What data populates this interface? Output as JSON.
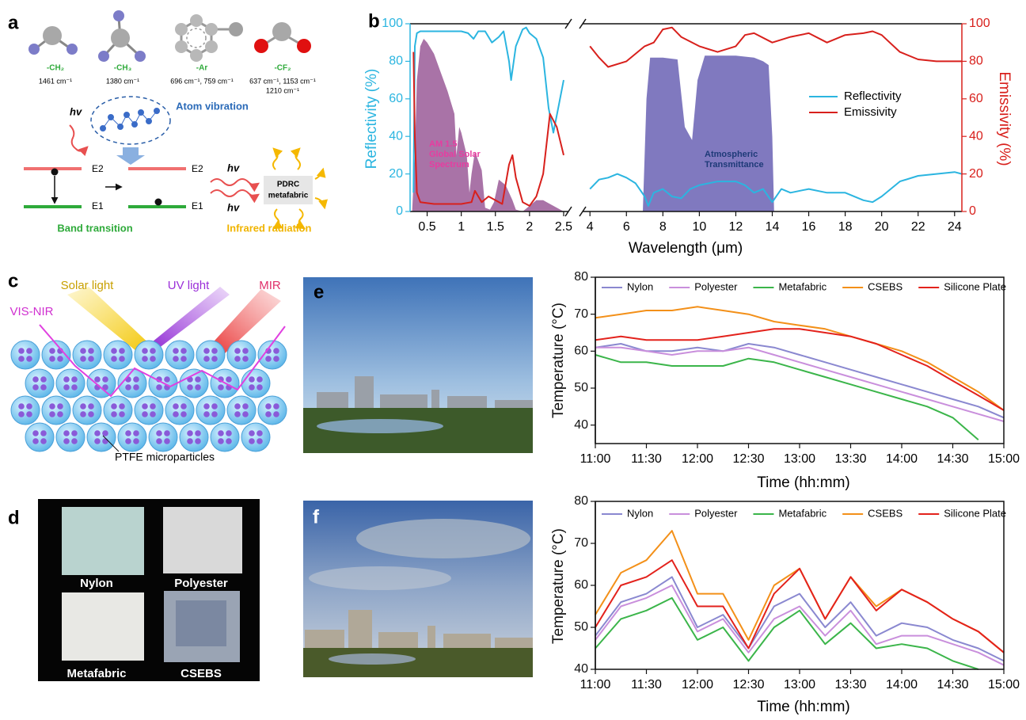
{
  "panel_a": {
    "label": "a",
    "groups": [
      {
        "name": "-CH₂",
        "wavenumber": [
          "1461 cm⁻¹"
        ]
      },
      {
        "name": "-CH₃",
        "wavenumber": [
          "1380 cm⁻¹"
        ]
      },
      {
        "name": "-Ar",
        "wavenumber": [
          "696 cm⁻¹, 759 cm⁻¹"
        ]
      },
      {
        "name": "-CF₂",
        "wavenumber": [
          "637 cm⁻¹, 1153 cm⁻¹",
          "1210 cm⁻¹"
        ]
      }
    ],
    "hv": [
      "hv",
      "hv",
      "hv"
    ],
    "atom_vibration": "Atom vibration",
    "levels": [
      "E2",
      "E1",
      "E2",
      "E1"
    ],
    "band_transition": "Band transition",
    "box": [
      "PDRC",
      "metafabric"
    ],
    "infrared": "Infrared radiation"
  },
  "panel_c": {
    "label": "c",
    "beams": [
      "Solar light",
      "UV light",
      "MIR",
      "VIS-NIR"
    ],
    "particles": "PTFE microparticles"
  },
  "panel_d": {
    "label": "d",
    "samples": [
      "Nylon",
      "Polyester",
      "Metafabric",
      "CSEBS"
    ]
  },
  "photos": [
    {
      "label": "e"
    },
    {
      "label": "f"
    }
  ],
  "chart_data": [
    {
      "type": "line",
      "label": "b",
      "xlabel": "Wavelength (μm)",
      "ylabel": "Reflectivity (%)",
      "y2label": "Emissivity (%)",
      "xlim": [
        0.25,
        24.4
      ],
      "xbreak": [
        2.57,
        3.6
      ],
      "xticks": [
        0.5,
        1,
        1.5,
        2,
        2.5,
        4,
        6,
        8,
        10,
        12,
        14,
        16,
        18,
        20,
        22,
        24
      ],
      "ylim": [
        0,
        100
      ],
      "yticks": [
        0,
        20,
        40,
        60,
        80,
        100
      ],
      "y2lim": [
        0,
        100
      ],
      "y2ticks": [
        0,
        20,
        40,
        60,
        80,
        100
      ],
      "ycolor": "#2bb5e0",
      "y2color": "#d8201c",
      "legend": "right",
      "annotations": [
        [
          "AM 1.5",
          "Global Solar",
          "Spectrum"
        ],
        [
          "Atmospheric",
          "Transmittance"
        ]
      ],
      "series": [
        {
          "style": "area",
          "color": "#9a5a98",
          "x": [
            0.28,
            0.32,
            0.35,
            0.4,
            0.45,
            0.5,
            0.6,
            0.7,
            0.8,
            0.9,
            0.93,
            0.97,
            1.0,
            1.08,
            1.12,
            1.15,
            1.2,
            1.3,
            1.35,
            1.42,
            1.48,
            1.55,
            1.65,
            1.75,
            1.8,
            1.9,
            2.0,
            2.1,
            2.2,
            2.35,
            2.5
          ],
          "values": [
            0,
            30,
            70,
            88,
            92,
            90,
            84,
            74,
            64,
            52,
            30,
            45,
            42,
            30,
            10,
            20,
            32,
            22,
            2,
            1,
            5,
            17,
            14,
            6,
            1,
            0,
            3,
            6,
            6,
            3,
            0
          ]
        },
        {
          "style": "area",
          "color": "#6a62b4",
          "x": [
            6.9,
            7.1,
            7.3,
            8,
            8.8,
            9.2,
            9.6,
            9.9,
            10.3,
            11,
            12,
            13,
            13.5,
            13.8,
            14,
            14.1
          ],
          "values": [
            0,
            60,
            82,
            82,
            81,
            45,
            38,
            70,
            83,
            83,
            83,
            82,
            80,
            78,
            40,
            0
          ]
        },
        {
          "name": "Reflectivity",
          "color": "#2bb5e0",
          "x": [
            0.3,
            0.32,
            0.35,
            0.4,
            0.6,
            0.8,
            1.0,
            1.1,
            1.18,
            1.25,
            1.35,
            1.45,
            1.55,
            1.62,
            1.7,
            1.73,
            1.8,
            1.9,
            1.95,
            2.0,
            2.1,
            2.2,
            2.28,
            2.35,
            2.42,
            2.5,
            4,
            4.5,
            5,
            5.5,
            6,
            6.5,
            7,
            7.2,
            7.5,
            8,
            8.5,
            9,
            9.5,
            10,
            11,
            12,
            12.5,
            13,
            13.5,
            14,
            14.5,
            15,
            16,
            17,
            18,
            19,
            19.5,
            20,
            21,
            22,
            23,
            24,
            24.4
          ],
          "values": [
            10,
            88,
            95,
            96,
            96,
            96,
            96,
            95,
            92,
            96,
            96,
            90,
            93,
            96,
            80,
            70,
            88,
            97,
            98,
            95,
            92,
            82,
            55,
            42,
            55,
            70,
            12,
            17,
            18,
            20,
            18,
            15,
            8,
            3,
            10,
            12,
            8,
            7,
            12,
            14,
            16,
            16,
            14,
            10,
            12,
            5,
            12,
            10,
            12,
            10,
            10,
            6,
            5,
            8,
            16,
            19,
            20,
            21,
            20
          ]
        },
        {
          "name": "Emissivity",
          "color": "#d8201c",
          "axis": "y2",
          "x": [
            0.3,
            0.32,
            0.35,
            0.4,
            0.6,
            1.0,
            1.15,
            1.2,
            1.3,
            1.4,
            1.6,
            1.7,
            1.75,
            1.8,
            1.9,
            2.0,
            2.1,
            2.2,
            2.3,
            2.4,
            2.5,
            4,
            4.5,
            5,
            6,
            7,
            7.5,
            8,
            8.5,
            9,
            10,
            11,
            12,
            12.5,
            13,
            14,
            15,
            16,
            17,
            18,
            19,
            19.5,
            20,
            21,
            22,
            23,
            24,
            24.4
          ],
          "values": [
            85,
            40,
            10,
            5,
            4,
            4,
            5,
            11,
            5,
            8,
            4,
            25,
            30,
            18,
            5,
            3,
            8,
            20,
            52,
            45,
            30,
            88,
            82,
            77,
            80,
            88,
            90,
            97,
            98,
            93,
            88,
            85,
            88,
            94,
            95,
            90,
            93,
            95,
            90,
            94,
            95,
            96,
            94,
            85,
            81,
            80,
            80,
            80
          ]
        }
      ]
    },
    {
      "type": "line",
      "xlabel": "Time (hh:mm)",
      "ylabel": "Temperature (°C)",
      "x": [
        "11:00",
        "11:15",
        "11:30",
        "11:45",
        "12:00",
        "12:15",
        "12:30",
        "12:45",
        "13:00",
        "13:15",
        "13:30",
        "13:45",
        "14:00",
        "14:15",
        "14:30",
        "14:45",
        "15:00"
      ],
      "xlim": [
        "11:00",
        "15:00"
      ],
      "xticks": [
        "11:00",
        "11:30",
        "12:00",
        "12:30",
        "13:00",
        "13:30",
        "14:00",
        "14:30",
        "15:00"
      ],
      "ylim": [
        35,
        80
      ],
      "yticks": [
        40,
        50,
        60,
        70,
        80
      ],
      "legend": "top",
      "series": [
        {
          "name": "Nylon",
          "color": "#8a88d0",
          "values": [
            61,
            62,
            60,
            60,
            61,
            60,
            62,
            61,
            59,
            57,
            55,
            53,
            51,
            49,
            47,
            45,
            42
          ]
        },
        {
          "name": "Polyester",
          "color": "#c98fdc",
          "values": [
            61,
            61,
            60,
            59,
            60,
            60,
            61,
            59,
            57,
            55,
            53,
            51,
            49,
            47,
            45,
            43,
            41
          ]
        },
        {
          "name": "Metafabric",
          "color": "#3bb54a",
          "values": [
            59,
            57,
            57,
            56,
            56,
            56,
            58,
            57,
            55,
            53,
            51,
            49,
            47,
            45,
            42,
            36,
            null
          ]
        },
        {
          "name": "CSEBS",
          "color": "#f39019",
          "values": [
            69,
            70,
            71,
            71,
            72,
            71,
            70,
            68,
            67,
            66,
            64,
            62,
            60,
            57,
            53,
            49,
            44
          ]
        },
        {
          "name": "Silicone Plate",
          "color": "#e3221c",
          "values": [
            63,
            64,
            63,
            63,
            63,
            64,
            65,
            66,
            66,
            65,
            64,
            62,
            59,
            56,
            52,
            48,
            44
          ]
        }
      ]
    },
    {
      "type": "line",
      "xlabel": "Time (hh:mm)",
      "ylabel": "Temperature (°C)",
      "x": [
        "11:00",
        "11:15",
        "11:30",
        "11:45",
        "12:00",
        "12:15",
        "12:30",
        "12:45",
        "13:00",
        "13:15",
        "13:30",
        "13:45",
        "14:00",
        "14:15",
        "14:30",
        "14:45",
        "15:00"
      ],
      "xlim": [
        "11:00",
        "15:00"
      ],
      "xticks": [
        "11:00",
        "11:30",
        "12:00",
        "12:30",
        "13:00",
        "13:30",
        "14:00",
        "14:30",
        "15:00"
      ],
      "ylim": [
        40,
        80
      ],
      "yticks": [
        40,
        50,
        60,
        70,
        80
      ],
      "legend": "top",
      "series": [
        {
          "name": "Nylon",
          "color": "#8a88d0",
          "values": [
            48,
            56,
            58,
            62,
            50,
            53,
            45,
            55,
            58,
            50,
            56,
            48,
            51,
            50,
            47,
            45,
            42
          ]
        },
        {
          "name": "Polyester",
          "color": "#c98fdc",
          "values": [
            47,
            55,
            57,
            60,
            49,
            52,
            44,
            52,
            55,
            48,
            54,
            46,
            48,
            48,
            46,
            44,
            41
          ]
        },
        {
          "name": "Metafabric",
          "color": "#3bb54a",
          "values": [
            45,
            52,
            54,
            57,
            47,
            50,
            42,
            50,
            54,
            46,
            51,
            45,
            46,
            45,
            42,
            40,
            null
          ]
        },
        {
          "name": "CSEBS",
          "color": "#f39019",
          "values": [
            53,
            63,
            66,
            73,
            58,
            58,
            47,
            60,
            64,
            52,
            62,
            55,
            59,
            56,
            52,
            49,
            44
          ]
        },
        {
          "name": "Silicone Plate",
          "color": "#e3221c",
          "values": [
            50,
            60,
            62,
            66,
            55,
            55,
            45,
            58,
            64,
            52,
            62,
            54,
            59,
            56,
            52,
            49,
            44
          ]
        }
      ]
    }
  ]
}
